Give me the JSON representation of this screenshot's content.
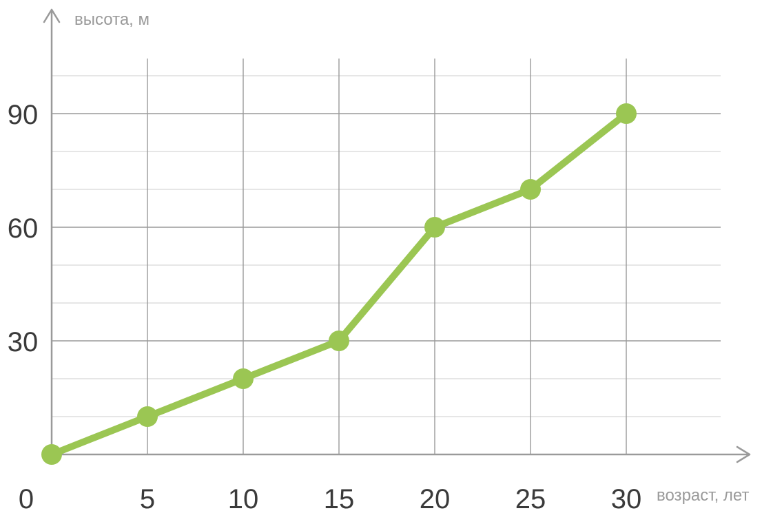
{
  "chart_data": {
    "type": "line",
    "title": "",
    "xlabel": "возраст, лет",
    "ylabel": "высота, м",
    "x": [
      0,
      5,
      10,
      15,
      20,
      25,
      30
    ],
    "series": [
      {
        "values": [
          0,
          10,
          20,
          30,
          60,
          70,
          90
        ]
      }
    ],
    "xlim": [
      0,
      35
    ],
    "ylim": [
      0,
      100
    ],
    "x_ticks": [
      "0",
      "5",
      "10",
      "15",
      "20",
      "25",
      "30"
    ],
    "y_ticks": [
      "30",
      "60",
      "90"
    ],
    "minor_y_step": 10,
    "grid": true,
    "legend": "none",
    "colors": {
      "line": "#9bc653",
      "marker": "#9bc653",
      "major_grid": "#9a9a9a",
      "minor_grid": "#d6d6d6",
      "axis": "#9a9a9a"
    }
  }
}
